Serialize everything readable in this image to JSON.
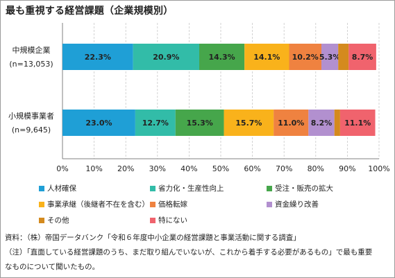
{
  "chart_data": {
    "type": "bar",
    "orientation": "horizontal",
    "stacked": true,
    "title": "最も重視する経営課題（企業規模別）",
    "categories": [
      {
        "name": "中規模企業",
        "n": "(n=13,053)"
      },
      {
        "name": "小規模事業者",
        "n": "(n=9,645)"
      }
    ],
    "series": [
      {
        "name": "人材確保",
        "color": "#1f9fd6",
        "values": [
          22.3,
          23.0
        ],
        "labels": [
          "22.3%",
          "23.0%"
        ]
      },
      {
        "name": "省力化・生産性向上",
        "color": "#32bca8",
        "values": [
          20.9,
          12.7
        ],
        "labels": [
          "20.9%",
          "12.7%"
        ]
      },
      {
        "name": "受注・販売の拡大",
        "color": "#46a64b",
        "values": [
          14.3,
          15.3
        ],
        "labels": [
          "14.3%",
          "15.3%"
        ]
      },
      {
        "name": "事業承継（後継者不在を含む）",
        "color": "#f9b21b",
        "values": [
          14.1,
          15.7
        ],
        "labels": [
          "14.1%",
          "15.7%"
        ]
      },
      {
        "name": "価格転嫁",
        "color": "#ef8240",
        "values": [
          10.2,
          11.0
        ],
        "labels": [
          "10.2%",
          "11.0%"
        ]
      },
      {
        "name": "資金繰り改善",
        "color": "#b290cf",
        "values": [
          5.3,
          8.2
        ],
        "labels": [
          "5.3%",
          "8.2%"
        ]
      },
      {
        "name": "その他",
        "color": "#d48a1e",
        "values": [
          3.3,
          1.8
        ],
        "labels": [
          "",
          ""
        ]
      },
      {
        "name": "特にない",
        "color": "#f0636d",
        "values": [
          8.7,
          11.1
        ],
        "labels": [
          "8.7%",
          "11.1%"
        ]
      }
    ],
    "xlim": [
      0,
      100
    ],
    "xticks": [
      "0%",
      "10%",
      "20%",
      "30%",
      "40%",
      "50%",
      "60%",
      "70%",
      "80%",
      "90%",
      "100%"
    ],
    "grid": true,
    "legend_position": "bottom"
  },
  "notes": {
    "source": "資料：（株）帝国データバンク「令和６年度中小企業の経営課題と事業活動に関する調査」",
    "note_first": "（注）「直面している経営課題のうち、まだ取り組んでいないが、これから着手する必要があるもの」で最も重要",
    "note_cont": "なものについて聞いたもの。"
  }
}
